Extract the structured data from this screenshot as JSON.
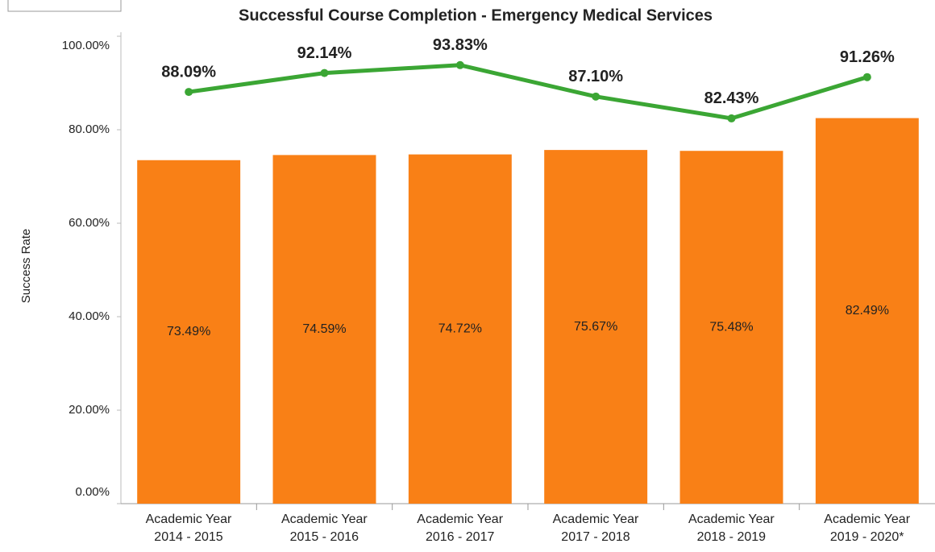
{
  "chart_data": {
    "type": "combo",
    "title": "Successful Course Completion - Emergency Medical Services",
    "y_label": "Success Rate",
    "categories": [
      "Academic Year\n2014 - 2015",
      "Academic Year\n2015 - 2016",
      "Academic Year\n2016 - 2017",
      "Academic Year\n2017 - 2018",
      "Academic Year\n2018 - 2019",
      "Academic Year\n2019 - 2020*"
    ],
    "series": [
      {
        "type": "bar",
        "color": "#f98016",
        "values": [
          73.49,
          74.59,
          74.72,
          75.67,
          75.48,
          82.49
        ],
        "value_labels": [
          "73.49%",
          "74.59%",
          "74.72%",
          "75.67%",
          "75.48%",
          "82.49%"
        ]
      },
      {
        "type": "line",
        "color": "#3ba634",
        "values": [
          88.09,
          92.14,
          93.83,
          87.1,
          82.43,
          91.26
        ],
        "value_labels": [
          "88.09%",
          "92.14%",
          "93.83%",
          "87.10%",
          "82.43%",
          "91.26%"
        ]
      }
    ],
    "ylim": [
      0,
      100
    ],
    "yticks": [
      {
        "value": 0,
        "label": "0.00%"
      },
      {
        "value": 20,
        "label": "20.00%"
      },
      {
        "value": 40,
        "label": "40.00%"
      },
      {
        "value": 60,
        "label": "60.00%"
      },
      {
        "value": 80,
        "label": "80.00%"
      },
      {
        "value": 100,
        "label": "100.00%"
      }
    ]
  }
}
